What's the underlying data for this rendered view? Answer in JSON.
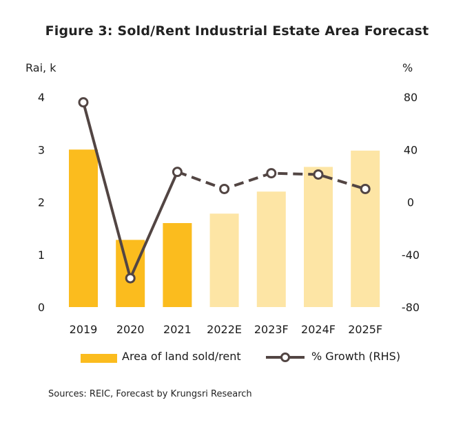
{
  "title": "Figure 3: Sold/Rent Industrial Estate Area Forecast",
  "y_left_unit": "Rai, k",
  "y_right_unit": "%",
  "legend": {
    "bar_label": "Area of land sold/rent",
    "line_label": "% Growth (RHS)"
  },
  "source": "Sources: REIC, Forecast by Krungsri Research",
  "colors": {
    "actual_bar": "#fbbc1e",
    "forecast_bar": "#fde5a5",
    "line": "#524543"
  },
  "chart_data": {
    "type": "bar",
    "title": "Figure 3: Sold/Rent Industrial Estate Area Forecast",
    "categories": [
      "2019",
      "2020",
      "2021",
      "2022E",
      "2023F",
      "2024F",
      "2025F"
    ],
    "y_left": {
      "label": "Rai, k",
      "ylim": [
        0,
        4
      ],
      "ticks": [
        0,
        1,
        2,
        3,
        4
      ]
    },
    "y_right": {
      "label": "%",
      "ylim": [
        -80,
        80
      ],
      "ticks": [
        -80,
        -40,
        0,
        40,
        80
      ]
    },
    "series": [
      {
        "name": "Area of land sold/rent",
        "type": "bar",
        "axis": "left",
        "values": [
          3.0,
          1.28,
          1.6,
          1.78,
          2.2,
          2.67,
          2.98
        ],
        "forecast_from_index": 3
      },
      {
        "name": "% Growth (RHS)",
        "type": "line",
        "axis": "right",
        "values": [
          76,
          -58,
          23,
          10,
          22,
          21,
          10
        ],
        "dashed_from_index": 2
      }
    ],
    "grid": false,
    "legend_position": "bottom"
  }
}
